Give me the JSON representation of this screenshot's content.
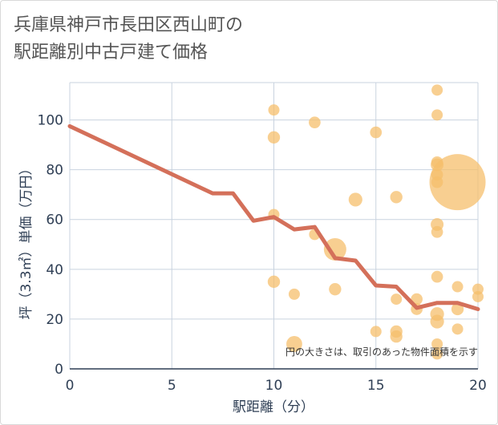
{
  "title_line1": "兵庫県神戸市長田区西山町の",
  "title_line2": "駅距離別中古戸建て価格",
  "chart_data": {
    "type": "scatter",
    "xlabel": "駅距離（分）",
    "ylabel": "坪（3.3㎡）単価（万円）",
    "xlim": [
      0,
      20
    ],
    "ylim": [
      0,
      115
    ],
    "x_ticks": [
      0,
      5,
      10,
      15,
      20
    ],
    "y_ticks": [
      0,
      20,
      40,
      60,
      80,
      100
    ],
    "x_tick_labels": [
      "0",
      "5",
      "10",
      "15",
      "20"
    ],
    "y_tick_labels": [
      "0",
      "20",
      "40",
      "60",
      "80",
      "100"
    ],
    "grid": true,
    "note": "円の大きさは、取引のあった物件面積を示す",
    "bubble_color": "#f5bf6c",
    "line_color": "#d4705a",
    "points": [
      {
        "x": 10,
        "y": 104,
        "size": 1
      },
      {
        "x": 10,
        "y": 93,
        "size": 1.2
      },
      {
        "x": 10,
        "y": 62,
        "size": 1
      },
      {
        "x": 10,
        "y": 35,
        "size": 1.2
      },
      {
        "x": 11,
        "y": 30,
        "size": 1
      },
      {
        "x": 11,
        "y": 10,
        "size": 2
      },
      {
        "x": 12,
        "y": 99,
        "size": 1.1
      },
      {
        "x": 12,
        "y": 54,
        "size": 1
      },
      {
        "x": 13,
        "y": 48,
        "size": 4
      },
      {
        "x": 13,
        "y": 32,
        "size": 1.2
      },
      {
        "x": 14,
        "y": 68,
        "size": 1.5
      },
      {
        "x": 15,
        "y": 95,
        "size": 1.1
      },
      {
        "x": 15,
        "y": 15,
        "size": 1
      },
      {
        "x": 16,
        "y": 69,
        "size": 1.2
      },
      {
        "x": 16,
        "y": 28,
        "size": 1
      },
      {
        "x": 16,
        "y": 15,
        "size": 1.2
      },
      {
        "x": 16,
        "y": 13,
        "size": 1.2
      },
      {
        "x": 17,
        "y": 28,
        "size": 1.1
      },
      {
        "x": 17,
        "y": 24,
        "size": 1.1
      },
      {
        "x": 18,
        "y": 112,
        "size": 1
      },
      {
        "x": 18,
        "y": 102,
        "size": 1
      },
      {
        "x": 18,
        "y": 83,
        "size": 1.1
      },
      {
        "x": 18,
        "y": 82,
        "size": 1.3
      },
      {
        "x": 18,
        "y": 78,
        "size": 1.1
      },
      {
        "x": 18,
        "y": 75,
        "size": 1.1
      },
      {
        "x": 18,
        "y": 58,
        "size": 1.3
      },
      {
        "x": 18,
        "y": 55,
        "size": 1.1
      },
      {
        "x": 18,
        "y": 37,
        "size": 1.1
      },
      {
        "x": 18,
        "y": 22,
        "size": 1.5
      },
      {
        "x": 18,
        "y": 19,
        "size": 1.5
      },
      {
        "x": 18,
        "y": 10,
        "size": 1
      },
      {
        "x": 18,
        "y": 6,
        "size": 1
      },
      {
        "x": 19,
        "y": 75,
        "size": 25
      },
      {
        "x": 19,
        "y": 33,
        "size": 1
      },
      {
        "x": 19,
        "y": 24,
        "size": 1.2
      },
      {
        "x": 19,
        "y": 16,
        "size": 1
      },
      {
        "x": 20,
        "y": 32,
        "size": 1
      },
      {
        "x": 20,
        "y": 29,
        "size": 1
      }
    ],
    "trend_line": {
      "x": [
        0,
        7,
        8,
        9,
        10,
        11,
        12,
        13,
        14,
        15,
        16,
        17,
        18,
        19,
        20
      ],
      "y": [
        97.5,
        70.5,
        70.5,
        59.5,
        61,
        56,
        57,
        44.5,
        43.5,
        33.5,
        33,
        24.5,
        26.5,
        26.5,
        24
      ]
    }
  }
}
